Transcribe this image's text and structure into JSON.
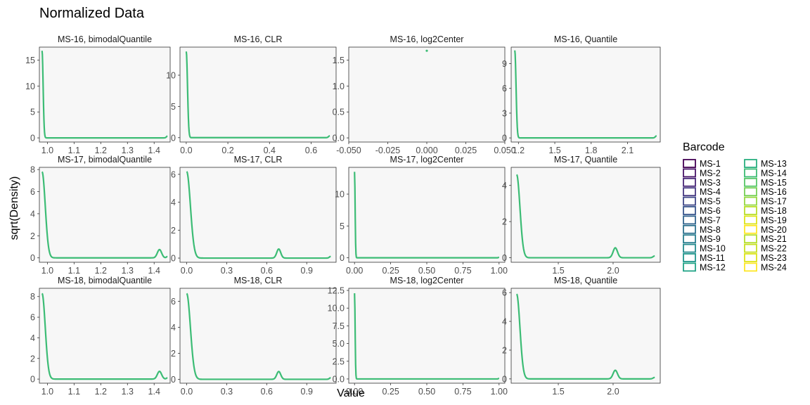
{
  "chart_data": {
    "type": "line",
    "title": "Normalized Data",
    "xlabel": "Value",
    "ylabel": "sqrt(Density)",
    "legend": {
      "title": "Barcode",
      "placement": "right",
      "entries": [
        {
          "label": "MS-1",
          "color": "#440154"
        },
        {
          "label": "MS-2",
          "color": "#481568"
        },
        {
          "label": "MS-3",
          "color": "#482677"
        },
        {
          "label": "MS-4",
          "color": "#453781"
        },
        {
          "label": "MS-5",
          "color": "#3F4788"
        },
        {
          "label": "MS-6",
          "color": "#39558C"
        },
        {
          "label": "MS-7",
          "color": "#32648E"
        },
        {
          "label": "MS-8",
          "color": "#2D718E"
        },
        {
          "label": "MS-9",
          "color": "#287D8E"
        },
        {
          "label": "MS-10",
          "color": "#238A8D"
        },
        {
          "label": "MS-11",
          "color": "#1F968B"
        },
        {
          "label": "MS-12",
          "color": "#20A386"
        },
        {
          "label": "MS-13",
          "color": "#29AF7F"
        },
        {
          "label": "MS-14",
          "color": "#3CBC75"
        },
        {
          "label": "MS-15",
          "color": "#56C667"
        },
        {
          "label": "MS-16",
          "color": "#75D054"
        },
        {
          "label": "MS-17",
          "color": "#95D840"
        },
        {
          "label": "MS-18",
          "color": "#BADE28"
        },
        {
          "label": "MS-19",
          "color": "#DDE318"
        },
        {
          "label": "MS-20",
          "color": "#FDE725"
        },
        {
          "label": "MS-21",
          "color": "#B4DE2C"
        },
        {
          "label": "MS-22",
          "color": "#C7E020"
        },
        {
          "label": "MS-23",
          "color": "#DDE318"
        },
        {
          "label": "MS-24",
          "color": "#FDE725"
        }
      ]
    },
    "panels": [
      {
        "strip": "MS-16, bimodalQuantile",
        "line_color": "#3CBC75",
        "xlim": [
          0.97,
          1.46
        ],
        "ylim": [
          -0.8,
          17.5
        ],
        "xticks": [
          1.0,
          1.1,
          1.2,
          1.3,
          1.4
        ],
        "xtick_labels": [
          "1.0",
          "1.1",
          "1.2",
          "1.3",
          "1.4"
        ],
        "yticks": [
          0,
          5,
          10,
          15
        ],
        "ytick_labels": [
          "0",
          "5",
          "10",
          "15"
        ],
        "peaks": [
          {
            "x": 0.98,
            "h": 16.8,
            "w": 0.004,
            "side": "right"
          },
          {
            "x": 1.45,
            "h": 0.35,
            "w": 0.004,
            "side": "left"
          }
        ]
      },
      {
        "strip": "MS-16, CLR",
        "line_color": "#3CBC75",
        "xlim": [
          -0.03,
          0.72
        ],
        "ylim": [
          -0.7,
          14.5
        ],
        "xticks": [
          0.0,
          0.2,
          0.4,
          0.6
        ],
        "xtick_labels": [
          "0.0",
          "0.2",
          "0.4",
          "0.6"
        ],
        "yticks": [
          0,
          5,
          10
        ],
        "ytick_labels": [
          "0",
          "5",
          "10"
        ],
        "peaks": [
          {
            "x": 0.0,
            "h": 13.8,
            "w": 0.006,
            "side": "right"
          },
          {
            "x": 0.69,
            "h": 0.3,
            "w": 0.006,
            "side": "left"
          }
        ]
      },
      {
        "strip": "MS-16, log2Center",
        "line_color": "#3CBC75",
        "xlim": [
          -0.05,
          0.05
        ],
        "ylim": [
          -0.08,
          1.75
        ],
        "xticks": [
          -0.05,
          -0.025,
          0.0,
          0.025,
          0.05
        ],
        "xtick_labels": [
          "-0.050",
          "-0.025",
          "0.000",
          "0.025",
          "0.050"
        ],
        "yticks": [
          0.0,
          0.5,
          1.0,
          1.5
        ],
        "ytick_labels": [
          "0.0",
          "0.5",
          "1.0",
          "1.5"
        ],
        "points": [
          {
            "x": 0.0,
            "y": 1.68
          }
        ]
      },
      {
        "strip": "MS-16, Quantile",
        "line_color": "#3CBC75",
        "xlim": [
          1.14,
          2.37
        ],
        "ylim": [
          -0.5,
          11.0
        ],
        "xticks": [
          1.2,
          1.5,
          1.8,
          2.1
        ],
        "xtick_labels": [
          "1.2",
          "1.5",
          "1.8",
          "2.1"
        ],
        "yticks": [
          0,
          3,
          6,
          9
        ],
        "ytick_labels": [
          "0",
          "3",
          "6",
          "9"
        ],
        "peaks": [
          {
            "x": 1.17,
            "h": 10.6,
            "w": 0.01,
            "side": "right"
          },
          {
            "x": 2.34,
            "h": 0.25,
            "w": 0.01,
            "side": "left"
          }
        ]
      },
      {
        "strip": "MS-17, bimodalQuantile",
        "line_color": "#3CBC75",
        "xlim": [
          0.97,
          1.46
        ],
        "ylim": [
          -0.4,
          8.2
        ],
        "xticks": [
          1.0,
          1.1,
          1.2,
          1.3,
          1.4
        ],
        "xtick_labels": [
          "1.0",
          "1.1",
          "1.2",
          "1.3",
          "1.4"
        ],
        "yticks": [
          0,
          2,
          4,
          6,
          8
        ],
        "ytick_labels": [
          "0",
          "2",
          "4",
          "6",
          "8"
        ],
        "peaks": [
          {
            "x": 0.98,
            "h": 7.8,
            "w": 0.012,
            "side": "right"
          },
          {
            "x": 1.42,
            "h": 0.75,
            "w": 0.008,
            "side": "both"
          },
          {
            "x": 1.45,
            "h": 0.12,
            "w": 0.004,
            "side": "left"
          }
        ]
      },
      {
        "strip": "MS-17, CLR",
        "line_color": "#3CBC75",
        "xlim": [
          -0.05,
          1.12
        ],
        "ylim": [
          -0.3,
          6.5
        ],
        "xticks": [
          0.0,
          0.3,
          0.6,
          0.9
        ],
        "xtick_labels": [
          "0.0",
          "0.3",
          "0.6",
          "0.9"
        ],
        "yticks": [
          0,
          2,
          4,
          6
        ],
        "ytick_labels": [
          "0",
          "2",
          "4",
          "6"
        ],
        "peaks": [
          {
            "x": 0.0,
            "h": 6.2,
            "w": 0.028,
            "side": "right"
          },
          {
            "x": 0.69,
            "h": 0.65,
            "w": 0.015,
            "side": "both"
          },
          {
            "x": 1.08,
            "h": 0.12,
            "w": 0.01,
            "side": "left"
          }
        ]
      },
      {
        "strip": "MS-17, log2Center",
        "line_color": "#3CBC75",
        "xlim": [
          -0.04,
          1.04
        ],
        "ylim": [
          -0.7,
          14.2
        ],
        "xticks": [
          0.0,
          0.25,
          0.5,
          0.75,
          1.0
        ],
        "xtick_labels": [
          "0.00",
          "0.25",
          "0.50",
          "0.75",
          "1.00"
        ],
        "yticks": [
          0,
          5,
          10
        ],
        "ytick_labels": [
          "0",
          "5",
          "10"
        ],
        "peaks": [
          {
            "x": 0.0,
            "h": 13.5,
            "w": 0.004,
            "side": "right"
          },
          {
            "x": 1.0,
            "h": 0.1,
            "w": 0.004,
            "side": "left"
          }
        ]
      },
      {
        "strip": "MS-17, Quantile",
        "line_color": "#3CBC75",
        "xlim": [
          1.07,
          2.43
        ],
        "ylim": [
          -0.25,
          5.0
        ],
        "xticks": [
          1.5,
          2.0
        ],
        "xtick_labels": [
          "1.5",
          "2.0"
        ],
        "yticks": [
          0,
          2,
          4
        ],
        "ytick_labels": [
          "0",
          "2",
          "4"
        ],
        "peaks": [
          {
            "x": 1.12,
            "h": 4.6,
            "w": 0.03,
            "side": "right"
          },
          {
            "x": 2.02,
            "h": 0.55,
            "w": 0.02,
            "side": "both"
          },
          {
            "x": 2.38,
            "h": 0.1,
            "w": 0.015,
            "side": "left"
          }
        ]
      },
      {
        "strip": "MS-18, bimodalQuantile",
        "line_color": "#3CBC75",
        "xlim": [
          0.97,
          1.46
        ],
        "ylim": [
          -0.4,
          8.8
        ],
        "xticks": [
          1.0,
          1.1,
          1.2,
          1.3,
          1.4
        ],
        "xtick_labels": [
          "1.0",
          "1.1",
          "1.2",
          "1.3",
          "1.4"
        ],
        "yticks": [
          0,
          2,
          4,
          6,
          8
        ],
        "ytick_labels": [
          "0",
          "2",
          "4",
          "6",
          "8"
        ],
        "peaks": [
          {
            "x": 0.98,
            "h": 8.3,
            "w": 0.012,
            "side": "right"
          },
          {
            "x": 1.42,
            "h": 0.75,
            "w": 0.008,
            "side": "both"
          },
          {
            "x": 1.45,
            "h": 0.12,
            "w": 0.004,
            "side": "left"
          }
        ]
      },
      {
        "strip": "MS-18, CLR",
        "line_color": "#3CBC75",
        "xlim": [
          -0.05,
          1.12
        ],
        "ylim": [
          -0.3,
          7.0
        ],
        "xticks": [
          0.0,
          0.3,
          0.6,
          0.9
        ],
        "xtick_labels": [
          "0.0",
          "0.3",
          "0.6",
          "0.9"
        ],
        "yticks": [
          0,
          2,
          4,
          6
        ],
        "ytick_labels": [
          "0",
          "2",
          "4",
          "6"
        ],
        "peaks": [
          {
            "x": 0.0,
            "h": 6.6,
            "w": 0.028,
            "side": "right"
          },
          {
            "x": 0.69,
            "h": 0.6,
            "w": 0.015,
            "side": "both"
          },
          {
            "x": 1.08,
            "h": 0.12,
            "w": 0.01,
            "side": "left"
          }
        ]
      },
      {
        "strip": "MS-18, log2Center",
        "line_color": "#3CBC75",
        "xlim": [
          -0.04,
          1.04
        ],
        "ylim": [
          -0.6,
          12.8
        ],
        "xticks": [
          0.0,
          0.25,
          0.5,
          0.75,
          1.0
        ],
        "xtick_labels": [
          "0.00",
          "0.25",
          "0.50",
          "0.75",
          "1.00"
        ],
        "yticks": [
          0.0,
          2.5,
          5.0,
          7.5,
          10.0,
          12.5
        ],
        "ytick_labels": [
          "0.0",
          "2.5",
          "5.0",
          "7.5",
          "10.0",
          "12.5"
        ],
        "peaks": [
          {
            "x": 0.0,
            "h": 12.1,
            "w": 0.004,
            "side": "right"
          },
          {
            "x": 1.0,
            "h": 0.1,
            "w": 0.004,
            "side": "left"
          }
        ]
      },
      {
        "strip": "MS-18, Quantile",
        "line_color": "#3CBC75",
        "xlim": [
          1.07,
          2.43
        ],
        "ylim": [
          -0.3,
          6.3
        ],
        "xticks": [
          1.5,
          2.0
        ],
        "xtick_labels": [
          "1.5",
          "2.0"
        ],
        "yticks": [
          0,
          2,
          4,
          6
        ],
        "ytick_labels": [
          "0",
          "2",
          "4",
          "6"
        ],
        "peaks": [
          {
            "x": 1.12,
            "h": 5.9,
            "w": 0.03,
            "side": "right"
          },
          {
            "x": 2.02,
            "h": 0.6,
            "w": 0.02,
            "side": "both"
          },
          {
            "x": 2.38,
            "h": 0.1,
            "w": 0.015,
            "side": "left"
          }
        ]
      }
    ]
  }
}
